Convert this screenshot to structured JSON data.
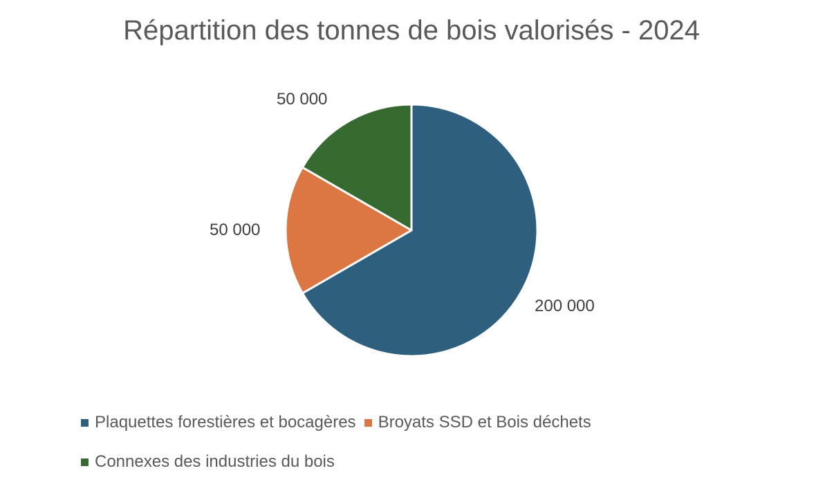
{
  "chart_data": {
    "type": "pie",
    "title": "Répartition des tonnes de bois valorisés - 2024",
    "categories": [
      "Plaquettes forestières et bocagères",
      "Broyats SSD et Bois déchets",
      "Connexes des industries du bois"
    ],
    "values": [
      200000,
      50000,
      50000
    ],
    "data_labels": [
      "200 000",
      "50 000",
      "50 000"
    ],
    "colors": [
      "#2e5f7f",
      "#dc7642",
      "#366a31"
    ],
    "legend_position": "bottom",
    "start_angle_deg": 0,
    "direction": "clockwise"
  },
  "legend": {
    "items": [
      {
        "label": "Plaquettes forestières et bocagères",
        "color": "#2e5f7f"
      },
      {
        "label": "Broyats SSD et Bois déchets",
        "color": "#dc7642"
      },
      {
        "label": "Connexes des industries du bois",
        "color": "#366a31"
      }
    ]
  }
}
